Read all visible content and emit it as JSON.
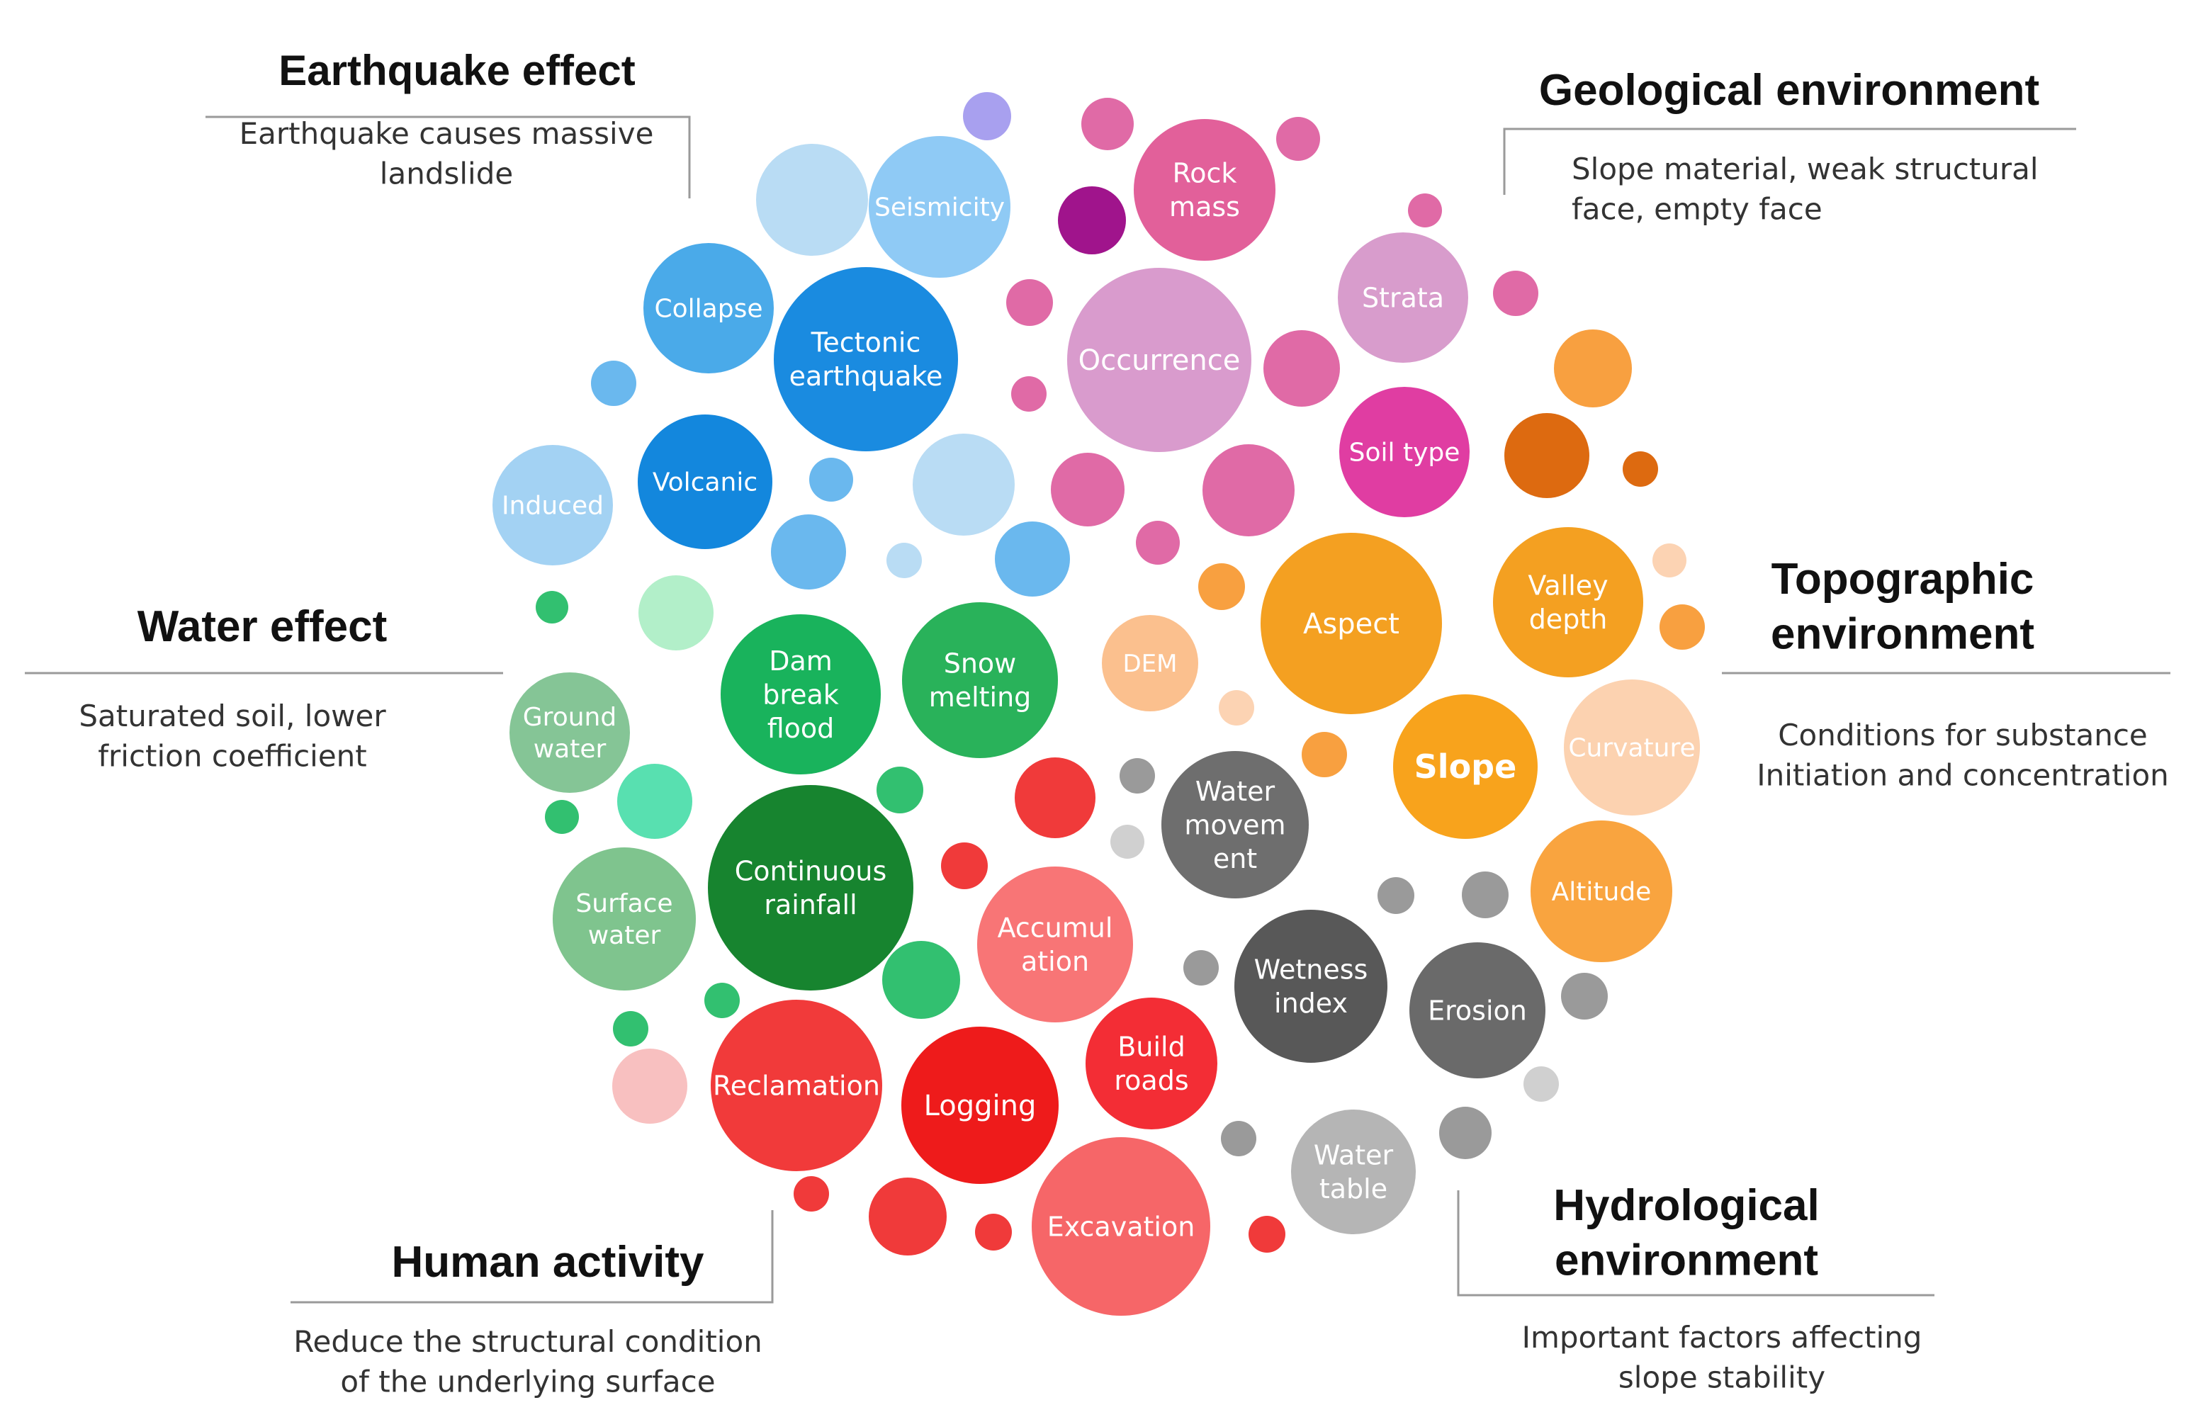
{
  "categories": {
    "earthquake": {
      "heading": [
        "Earthquake effect"
      ],
      "description": [
        "Earthquake causes massive",
        "landslide"
      ]
    },
    "geological": {
      "heading": [
        "Geological environment"
      ],
      "description": [
        "Slope material, weak structural",
        "face, empty face"
      ]
    },
    "topographic": {
      "heading": [
        "Topographic",
        "environment"
      ],
      "description": [
        "Conditions for substance",
        "Initiation and concentration"
      ]
    },
    "water": {
      "heading": [
        "Water effect"
      ],
      "description": [
        "Saturated soil, lower",
        "friction coefficient"
      ]
    },
    "human": {
      "heading": [
        "Human activity"
      ],
      "description": [
        "Reduce the structural condition",
        "of the underlying surface"
      ]
    },
    "hydrological": {
      "heading": [
        "Hydrological",
        "environment"
      ],
      "description": [
        "Important factors affecting",
        "slope stability"
      ]
    }
  },
  "bubbles": [
    {
      "id": "seismicity",
      "lines": [
        "Seismicity"
      ],
      "color": "#8fcaf5"
    },
    {
      "id": "collapse",
      "lines": [
        "Collapse"
      ],
      "color": "#4aaae9"
    },
    {
      "id": "tectonic-earthquake",
      "lines": [
        "Tectonic",
        "earthquake"
      ],
      "color": "#1a8be0"
    },
    {
      "id": "volcanic",
      "lines": [
        "Volcanic"
      ],
      "color": "#1387dd"
    },
    {
      "id": "induced",
      "lines": [
        "Induced"
      ],
      "color": "#a3d2f3"
    },
    {
      "id": "rock-mass",
      "lines": [
        "Rock",
        "mass"
      ],
      "color": "#e2609a"
    },
    {
      "id": "occurrence",
      "lines": [
        "Occurrence"
      ],
      "color": "#d99bcd"
    },
    {
      "id": "strata",
      "lines": [
        "Strata"
      ],
      "color": "#d89ccc"
    },
    {
      "id": "soil-type",
      "lines": [
        "Soil type"
      ],
      "color": "#e03da2"
    },
    {
      "id": "aspect",
      "lines": [
        "Aspect"
      ],
      "color": "#f4a021"
    },
    {
      "id": "valley-depth",
      "lines": [
        "Valley",
        "depth"
      ],
      "color": "#f4a021"
    },
    {
      "id": "dem",
      "lines": [
        "DEM"
      ],
      "color": "#fbc08e"
    },
    {
      "id": "slope",
      "lines": [
        "Slope"
      ],
      "color": "#f8a31c",
      "label_color": "#e8230f",
      "bold": true
    },
    {
      "id": "curvature",
      "lines": [
        "Curvature"
      ],
      "color": "#fcd2b0"
    },
    {
      "id": "altitude",
      "lines": [
        "Altitude"
      ],
      "color": "#f9a43f"
    },
    {
      "id": "dam-break-flood",
      "lines": [
        "Dam",
        "break",
        "flood"
      ],
      "color": "#19b35c",
      "label_color": "#8de8c2"
    },
    {
      "id": "snow-melting",
      "lines": [
        "Snow",
        "melting"
      ],
      "color": "#29b25a"
    },
    {
      "id": "ground-water",
      "lines": [
        "Ground",
        "water"
      ],
      "color": "#85c596"
    },
    {
      "id": "surface-water",
      "lines": [
        "Surface",
        "water"
      ],
      "color": "#7fc48e"
    },
    {
      "id": "continuous-rainfall",
      "lines": [
        "Continuous",
        "rainfall"
      ],
      "color": "#17842f"
    },
    {
      "id": "water-movement",
      "lines": [
        "Water",
        "movem",
        "ent"
      ],
      "color": "#6e6e6e"
    },
    {
      "id": "wetness-index",
      "lines": [
        "Wetness",
        "index"
      ],
      "color": "#585858"
    },
    {
      "id": "erosion",
      "lines": [
        "Erosion"
      ],
      "color": "#6a6a6a"
    },
    {
      "id": "water-table",
      "lines": [
        "Water",
        "table"
      ],
      "color": "#b5b5b5"
    },
    {
      "id": "accumulation",
      "lines": [
        "Accumul",
        "ation"
      ],
      "color": "#f87576"
    },
    {
      "id": "reclamation",
      "lines": [
        "Reclamation"
      ],
      "color": "#f13a3a"
    },
    {
      "id": "logging",
      "lines": [
        "Logging"
      ],
      "color": "#ee1b1b"
    },
    {
      "id": "build-roads",
      "lines": [
        "Build",
        "roads"
      ],
      "color": "#f32d35"
    },
    {
      "id": "excavation",
      "lines": [
        "Excavation"
      ],
      "color": "#f66668"
    }
  ],
  "decorative_colors": {
    "blue": "#6ab8ee",
    "pale_blue": "#b9dcf4",
    "purple": "#a8a0ef",
    "magenta": "#e06aa6",
    "dark_magenta": "#a0148c",
    "orange": "#f8a040",
    "dark_orange": "#dd6a10",
    "green": "#32c070",
    "mint": "#58e0b0",
    "gray": "#9a9a9a",
    "light_gray": "#d0d0d0",
    "red": "#f03a3a",
    "pink": "#f8c0c0"
  }
}
